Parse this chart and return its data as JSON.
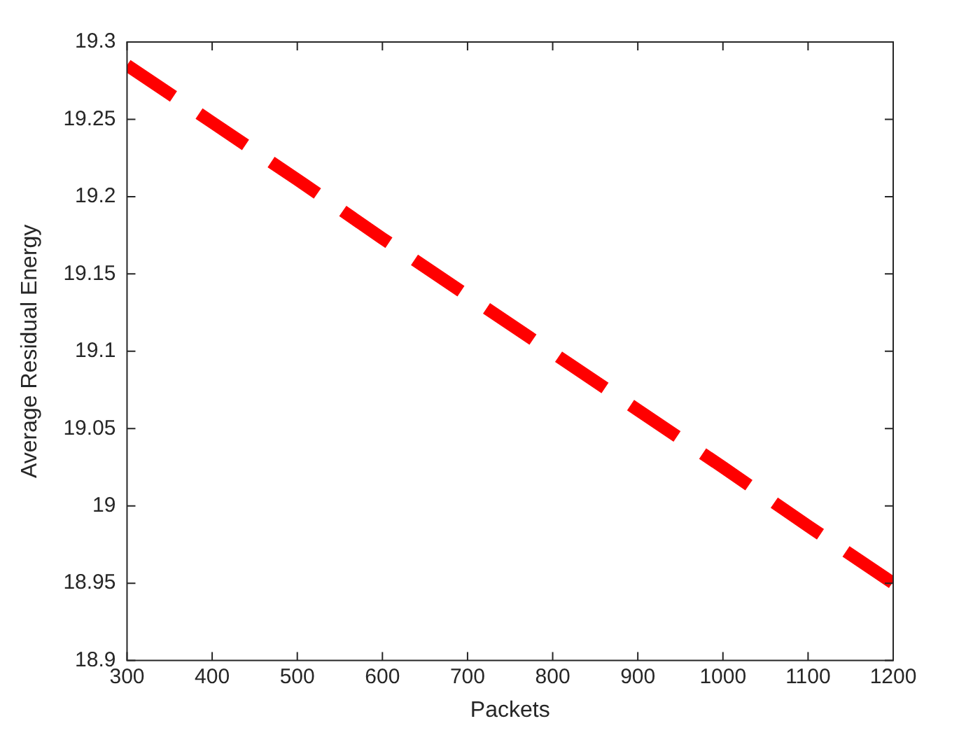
{
  "chart_data": {
    "type": "line",
    "xlabel": "Packets",
    "ylabel": "Average Residual Energy",
    "x": [
      300,
      400,
      500,
      600,
      700,
      800,
      900,
      1000,
      1100,
      1200
    ],
    "series": [
      {
        "color": "#ff0000",
        "values": [
          19.285,
          19.248,
          19.211,
          19.173,
          19.136,
          19.099,
          19.062,
          19.025,
          18.987,
          18.95
        ]
      }
    ],
    "xlim": [
      300,
      1200
    ],
    "xticks": [
      300,
      400,
      500,
      600,
      700,
      800,
      900,
      1000,
      1100,
      1200
    ],
    "ylim": [
      18.9,
      19.3
    ],
    "yticks": [
      18.9,
      18.95,
      19,
      19.05,
      19.1,
      19.15,
      19.2,
      19.25,
      19.3
    ],
    "grid": false,
    "legend": false,
    "marker": "none",
    "line_style": "dashed"
  }
}
